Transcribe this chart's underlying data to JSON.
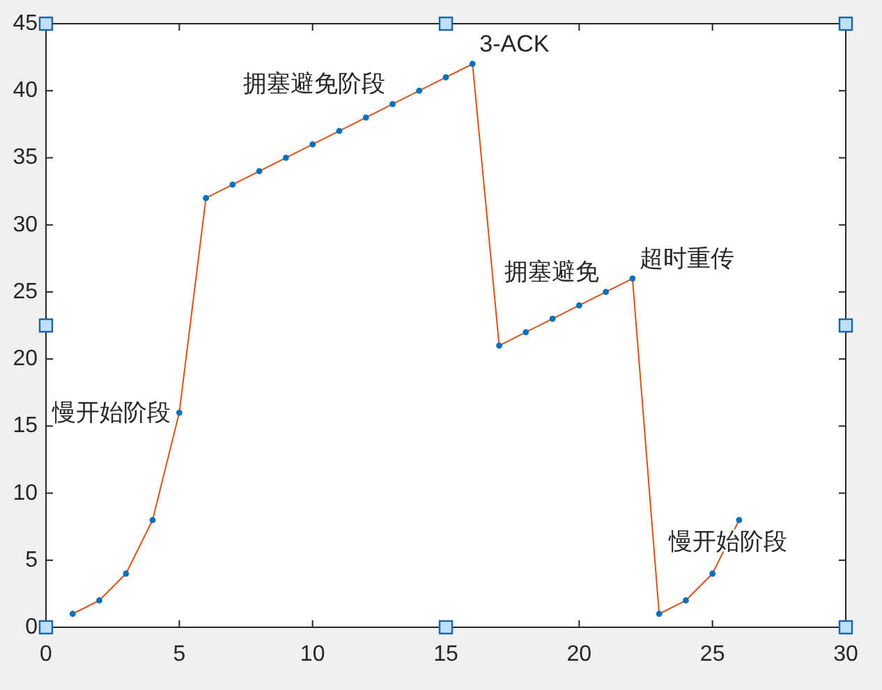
{
  "chart_data": {
    "type": "line",
    "x": [
      1,
      2,
      3,
      4,
      5,
      6,
      7,
      8,
      9,
      10,
      11,
      12,
      13,
      14,
      15,
      16,
      17,
      18,
      19,
      20,
      21,
      22,
      23,
      24,
      25,
      26
    ],
    "xlim": [
      0,
      30
    ],
    "xticks": [
      0,
      5,
      10,
      15,
      20,
      25,
      30
    ],
    "ylim": [
      0,
      45
    ],
    "yticks": [
      0,
      5,
      10,
      15,
      20,
      25,
      30,
      35,
      40,
      45
    ],
    "series": [
      {
        "color": "#d95319",
        "marker": "none",
        "values": [
          1,
          2,
          4,
          8,
          16,
          32,
          33,
          34,
          35,
          36,
          37,
          38,
          39,
          40,
          41,
          42,
          21,
          22,
          23,
          24,
          25,
          26,
          1,
          2,
          4,
          8
        ]
      },
      {
        "type": "scatter",
        "color": "#0072bd",
        "marker": "circle",
        "values": [
          1,
          2,
          4,
          8,
          16,
          32,
          33,
          34,
          35,
          36,
          37,
          38,
          39,
          40,
          41,
          42,
          21,
          22,
          23,
          24,
          25,
          26,
          1,
          2,
          4,
          8
        ]
      }
    ],
    "annotations": [
      {
        "text": "慢开始阶段",
        "x": 5,
        "y": 16
      },
      {
        "text": "拥塞避免阶段",
        "x": 13,
        "y": 39
      },
      {
        "text": "3-ACK",
        "x": 16,
        "y": 42
      },
      {
        "text": "拥塞避免",
        "x": 21,
        "y": 25
      },
      {
        "text": "超时重传",
        "x": 22,
        "y": 26
      },
      {
        "text": "慢开始阶段",
        "x": 25.6,
        "y": 6.4
      }
    ]
  }
}
